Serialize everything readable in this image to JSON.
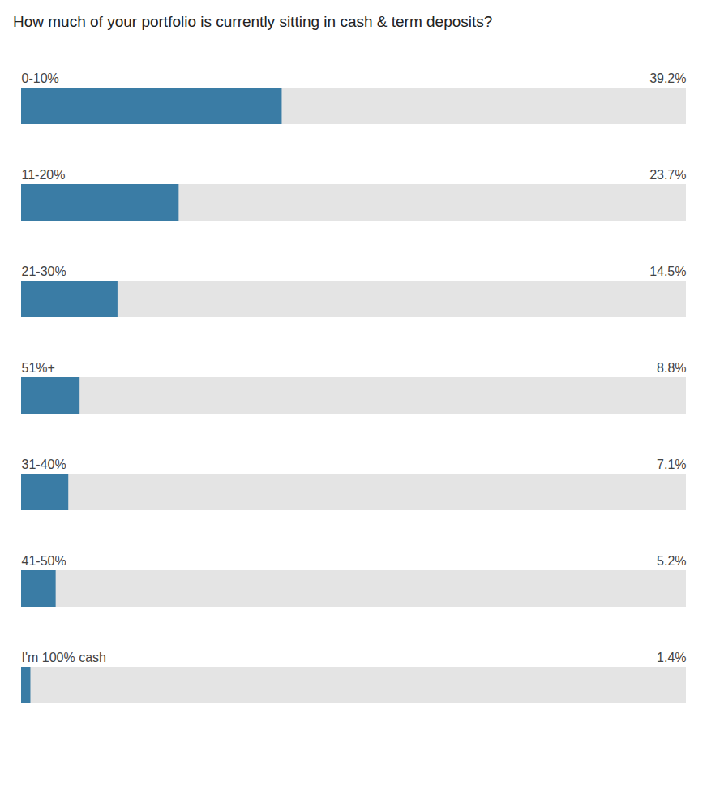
{
  "chart_data": {
    "type": "bar",
    "orientation": "horizontal",
    "title": "How much of your portfolio is currently sitting in cash & term deposits?",
    "categories": [
      "0-10%",
      "11-20%",
      "21-30%",
      "51%+",
      "31-40%",
      "41-50%",
      "I'm 100% cash"
    ],
    "values": [
      39.2,
      23.7,
      14.5,
      8.8,
      7.1,
      5.2,
      1.4
    ],
    "value_labels": [
      "39.2%",
      "23.7%",
      "14.5%",
      "8.8%",
      "7.1%",
      "5.2%",
      "1.4%"
    ],
    "data_labels": true,
    "color": "#3a7ca5",
    "xlim": [
      0,
      100
    ],
    "tick_labels": false,
    "grid": false
  }
}
